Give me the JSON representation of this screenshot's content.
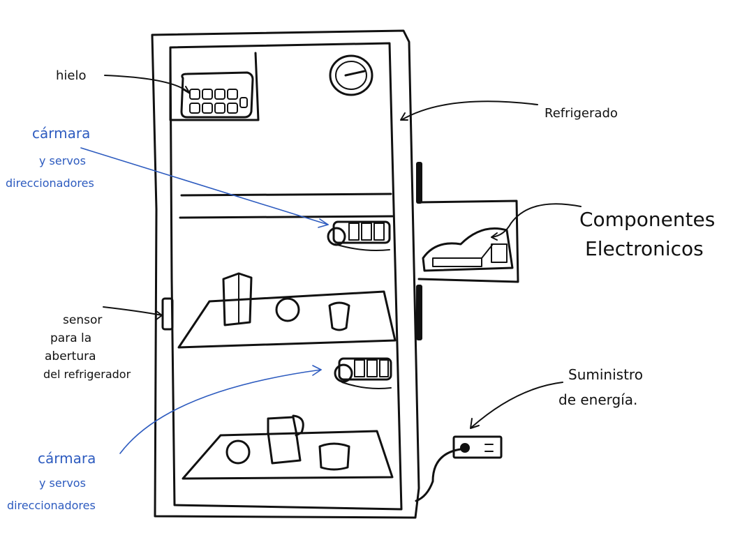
{
  "labels": {
    "hielo": "hielo",
    "refrigerado": "Refrigerado",
    "componentes_1": "Componentes",
    "componentes_2": "Electronicos",
    "sensor_1": "sensor",
    "sensor_2": "para la",
    "sensor_3": "abertura",
    "sensor_4": "del refrigerador",
    "camara_top_1": "cármara",
    "camara_top_2": "y servos",
    "camara_top_3": "direccionadores",
    "camara_bottom_1": "cármara",
    "camara_bottom_2": "y servos",
    "camara_bottom_3": "direccionadores",
    "suministro_1": "Suministro",
    "suministro_2": "de energía."
  },
  "colors": {
    "ink": "#111111",
    "annotation_blue": "#2d5bbf"
  }
}
